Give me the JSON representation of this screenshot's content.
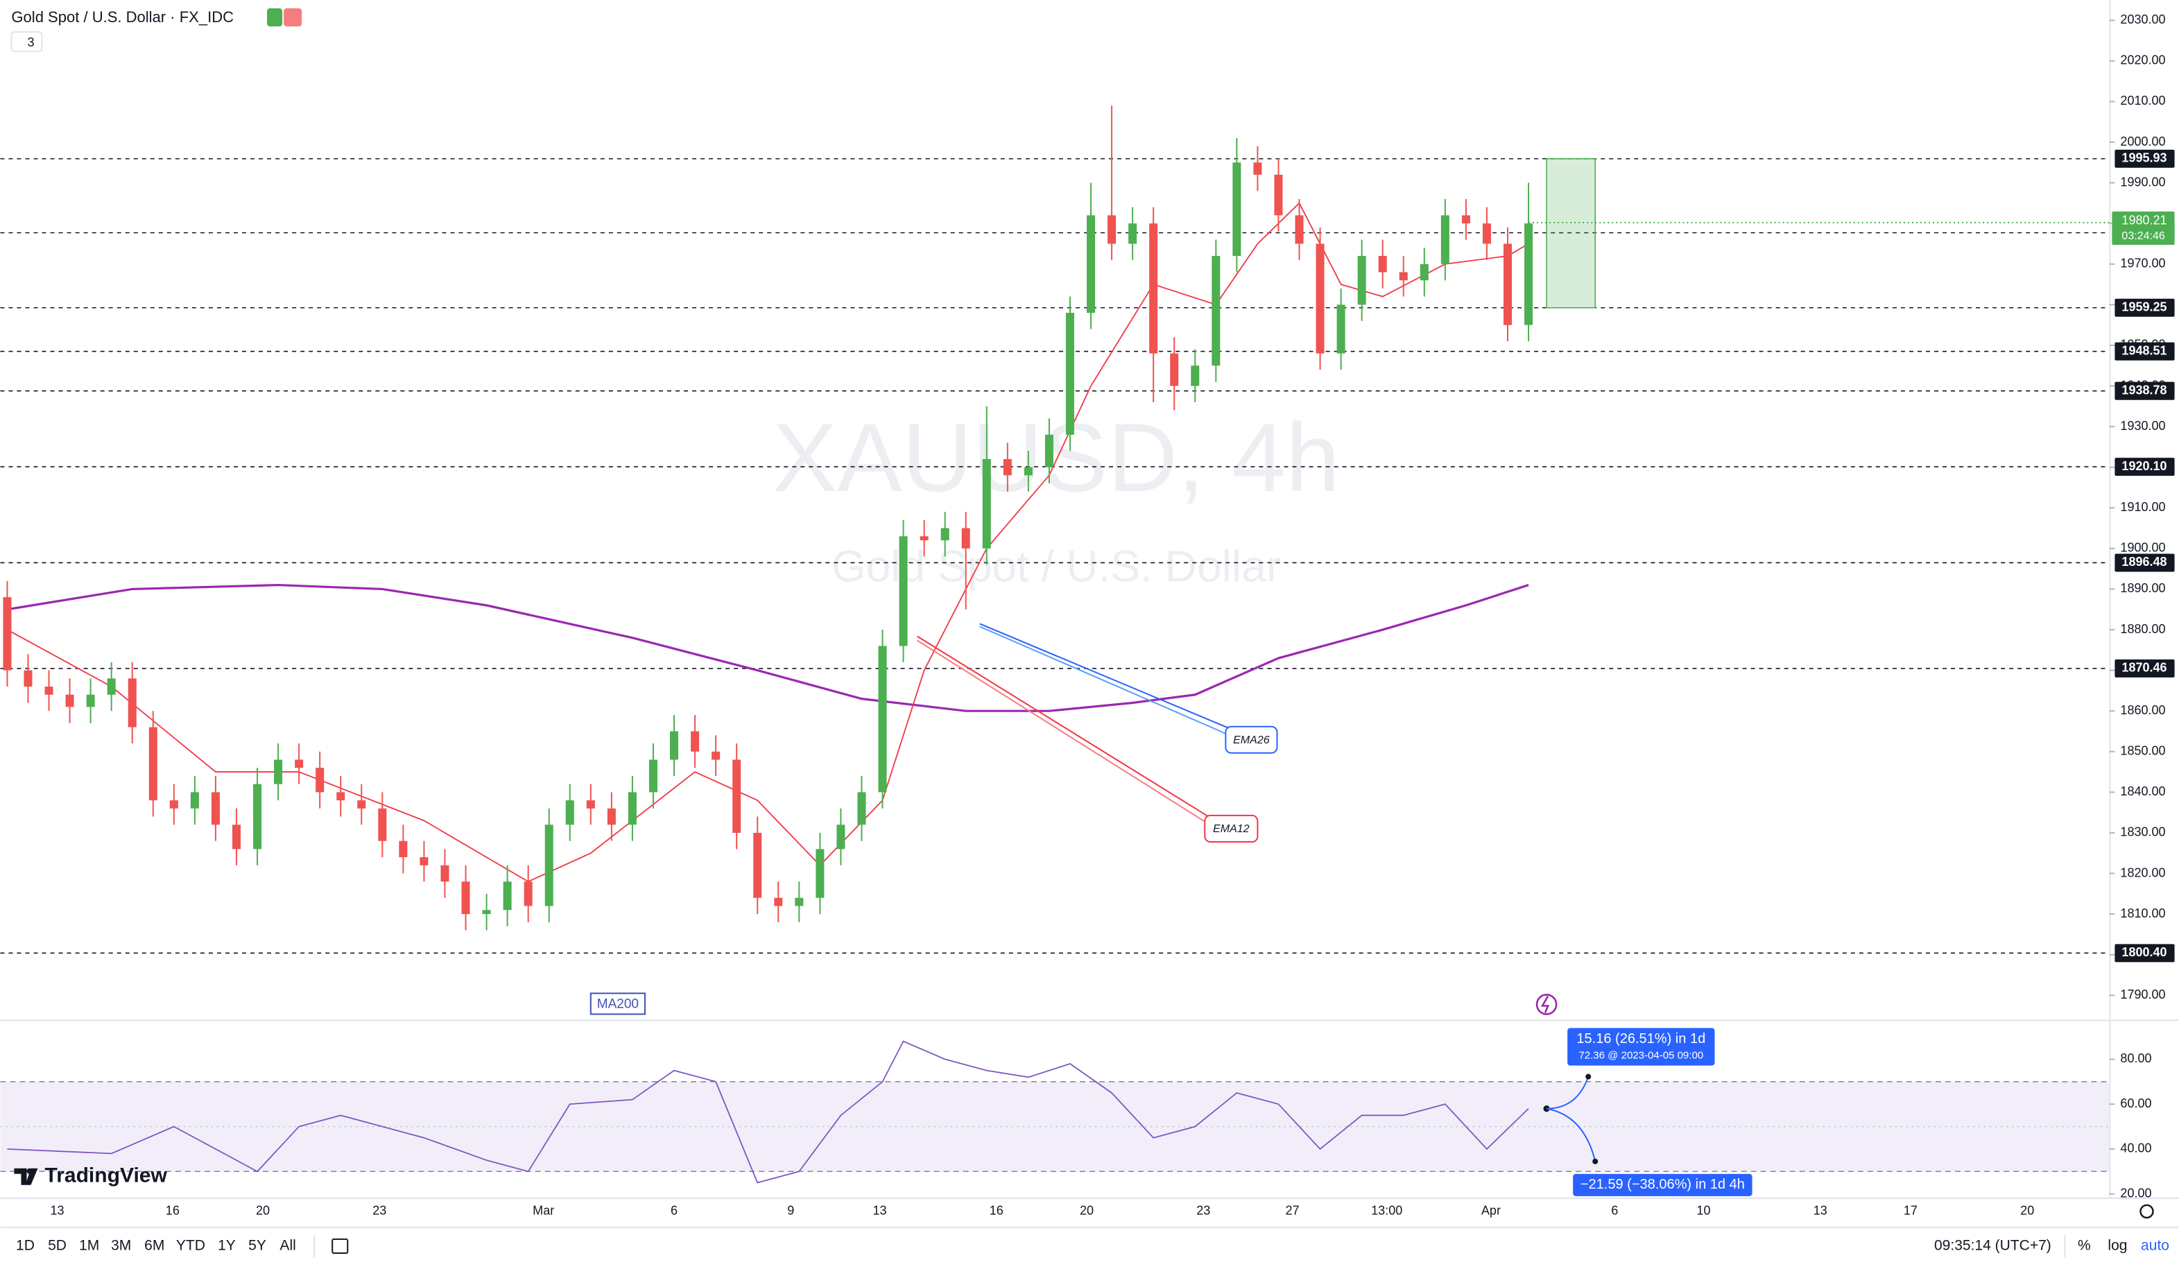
{
  "chart_data": {
    "type": "candlestick",
    "title": "Gold Spot / U.S. Dollar · FX_IDC",
    "interval_badge": "3",
    "watermark": "XAUUSD, 4h",
    "watermark_subtitle": "Gold Spot / U.S. Dollar",
    "up_color": "#4caf50",
    "down_color": "#ef5350",
    "open": [
      1888,
      1870,
      1866,
      1864,
      1861,
      1864,
      1868,
      1856,
      1838,
      1836,
      1840,
      1832,
      1826,
      1842,
      1848,
      1846,
      1840,
      1838,
      1836,
      1828,
      1824,
      1822,
      1818,
      1810,
      1811,
      1818,
      1812,
      1832,
      1838,
      1836,
      1832,
      1840,
      1848,
      1855,
      1850,
      1848,
      1830,
      1814,
      1812,
      1814,
      1826,
      1832,
      1840,
      1876,
      1903,
      1902,
      1905,
      1900,
      1922,
      1918,
      1920,
      1928,
      1958,
      1982,
      1975,
      1980,
      1948,
      1940,
      1945,
      1972,
      1995,
      1992,
      1982,
      1975,
      1948,
      1960,
      1972,
      1968,
      1966,
      1970,
      1982,
      1980,
      1975,
      1955
    ],
    "high": [
      1892,
      1874,
      1870,
      1868,
      1868,
      1872,
      1872,
      1860,
      1842,
      1844,
      1844,
      1836,
      1846,
      1852,
      1852,
      1850,
      1844,
      1842,
      1840,
      1832,
      1828,
      1826,
      1822,
      1815,
      1822,
      1822,
      1836,
      1842,
      1842,
      1840,
      1844,
      1852,
      1859,
      1859,
      1854,
      1852,
      1834,
      1818,
      1818,
      1830,
      1836,
      1844,
      1880,
      1907,
      1907,
      1909,
      1909,
      1935,
      1926,
      1924,
      1932,
      1962,
      1990,
      2009,
      1984,
      1984,
      1952,
      1949,
      1976,
      2001,
      1999,
      1996,
      1986,
      1979,
      1964,
      1976,
      1976,
      1972,
      1974,
      1986,
      1986,
      1984,
      1979,
      1990
    ],
    "low": [
      1866,
      1862,
      1860,
      1857,
      1857,
      1860,
      1852,
      1834,
      1832,
      1832,
      1828,
      1822,
      1822,
      1838,
      1842,
      1836,
      1834,
      1832,
      1824,
      1820,
      1818,
      1814,
      1806,
      1806,
      1807,
      1808,
      1808,
      1828,
      1832,
      1828,
      1828,
      1836,
      1844,
      1846,
      1844,
      1826,
      1810,
      1808,
      1808,
      1810,
      1822,
      1828,
      1836,
      1872,
      1898,
      1898,
      1885,
      1896,
      1914,
      1914,
      1916,
      1924,
      1954,
      1971,
      1971,
      1936,
      1934,
      1936,
      1941,
      1968,
      1988,
      1978,
      1971,
      1944,
      1944,
      1956,
      1964,
      1962,
      1962,
      1966,
      1976,
      1971,
      1951,
      1951
    ],
    "close": [
      1870,
      1866,
      1864,
      1861,
      1864,
      1868,
      1856,
      1838,
      1836,
      1840,
      1832,
      1826,
      1842,
      1848,
      1846,
      1840,
      1838,
      1836,
      1828,
      1824,
      1822,
      1818,
      1810,
      1811,
      1818,
      1812,
      1832,
      1838,
      1836,
      1832,
      1840,
      1848,
      1855,
      1850,
      1848,
      1830,
      1814,
      1812,
      1814,
      1826,
      1832,
      1840,
      1876,
      1903,
      1902,
      1905,
      1900,
      1922,
      1918,
      1920,
      1928,
      1958,
      1982,
      1975,
      1980,
      1948,
      1940,
      1945,
      1972,
      1995,
      1992,
      1982,
      1975,
      1948,
      1960,
      1972,
      1968,
      1966,
      1970,
      1982,
      1980,
      1975,
      1955,
      1980
    ],
    "lines": [
      {
        "name": "EMA12",
        "color": "#f23645",
        "x": [
          0,
          5,
          10,
          14,
          20,
          25,
          28,
          33,
          36,
          39,
          42,
          44,
          47,
          50,
          52,
          55,
          58,
          60,
          62,
          64,
          66,
          69,
          72,
          73
        ],
        "values": [
          1880,
          1866,
          1845,
          1845,
          1833,
          1818,
          1825,
          1845,
          1838,
          1822,
          1838,
          1870,
          1900,
          1918,
          1940,
          1965,
          1960,
          1975,
          1985,
          1965,
          1962,
          1970,
          1972,
          1975
        ]
      },
      {
        "name": "MA200",
        "color": "#9c27b0",
        "x": [
          0,
          6,
          13,
          18,
          23,
          30,
          36,
          41,
          46,
          50,
          54,
          57,
          61,
          66,
          70,
          73
        ],
        "values": [
          1885,
          1890,
          1891,
          1890,
          1886,
          1878,
          1870,
          1863,
          1860,
          1860,
          1862,
          1864,
          1873,
          1880,
          1886,
          1891
        ]
      }
    ],
    "ema26_label": "EMA26",
    "ylim": [
      1784,
      2035
    ],
    "yticks": [
      {
        "value": 2030,
        "label": "2030.00"
      },
      {
        "value": 2020,
        "label": "2020.00"
      },
      {
        "value": 2010,
        "label": "2010.00"
      },
      {
        "value": 2000,
        "label": "2000.00"
      },
      {
        "value": 1990,
        "label": "1990.00"
      },
      {
        "value": 1980,
        "label": "1980.00"
      },
      {
        "value": 1970,
        "label": "1970.00"
      },
      {
        "value": 1960,
        "label": "1960.00"
      },
      {
        "value": 1950,
        "label": "1950.00"
      },
      {
        "value": 1940,
        "label": "1940.00"
      },
      {
        "value": 1930,
        "label": "1930.00"
      },
      {
        "value": 1920,
        "label": "1920.00"
      },
      {
        "value": 1910,
        "label": "1910.00"
      },
      {
        "value": 1900,
        "label": "1900.00"
      },
      {
        "value": 1890,
        "label": "1890.00"
      },
      {
        "value": 1880,
        "label": "1880.00"
      },
      {
        "value": 1870,
        "label": "1870.00"
      },
      {
        "value": 1860,
        "label": "1860.00"
      },
      {
        "value": 1850,
        "label": "1850.00"
      },
      {
        "value": 1840,
        "label": "1840.00"
      },
      {
        "value": 1830,
        "label": "1830.00"
      },
      {
        "value": 1820,
        "label": "1820.00"
      },
      {
        "value": 1810,
        "label": "1810.00"
      },
      {
        "value": 1800,
        "label": "1800.00"
      },
      {
        "value": 1790,
        "label": "1790.00"
      }
    ],
    "levels": [
      1995.93,
      1977.71,
      1959.25,
      1948.51,
      1938.78,
      {
        "value": 1920.1,
        "label": "1920.10"
      },
      1896.48,
      1870.46,
      {
        "value": 1800.4,
        "label": "1800.40"
      }
    ],
    "last_price": 1980.21,
    "countdown": "03:24:46",
    "x_labels": [
      "13",
      "16",
      "20",
      "23",
      "Mar",
      "6",
      "9",
      "13",
      "16",
      "20",
      "23",
      "27",
      "13:00",
      "Apr",
      "6",
      "10",
      "13",
      "17",
      "20"
    ],
    "rsi": {
      "color": "#7e57c2",
      "ylim": [
        19,
        97
      ],
      "yticks": [
        {
          "value": 80,
          "label": "80.00"
        },
        {
          "value": 60,
          "label": "60.00"
        },
        {
          "value": 40,
          "label": "40.00"
        },
        {
          "value": 20,
          "label": "20.00"
        }
      ],
      "bands": [
        70,
        30
      ],
      "middle": 50,
      "x": [
        0,
        5,
        8,
        12,
        14,
        16,
        20,
        23,
        25,
        27,
        30,
        32,
        34,
        36,
        38,
        40,
        42,
        43,
        45,
        47,
        49,
        51,
        53,
        55,
        57,
        59,
        61,
        63,
        65,
        67,
        69,
        71,
        73
      ],
      "values": [
        40,
        38,
        50,
        30,
        50,
        55,
        45,
        35,
        30,
        60,
        62,
        75,
        70,
        25,
        30,
        55,
        70,
        88,
        80,
        75,
        72,
        78,
        65,
        45,
        50,
        65,
        60,
        40,
        55,
        55,
        60,
        40,
        58
      ]
    },
    "projection_up": "15.16 (26.51%) in 1d",
    "projection_up_detail": "72.36 @ 2023-04-05  09:00",
    "projection_down": "−21.59 (−38.06%) in 1d 4h",
    "logo": "TradingView",
    "toolbar": {
      "ranges": [
        "1D",
        "5D",
        "1M",
        "3M",
        "6M",
        "YTD",
        "1Y",
        "5Y",
        "All"
      ],
      "clock": "09:35:14 (UTC+7)",
      "options": [
        "%",
        "log",
        "auto"
      ]
    }
  }
}
